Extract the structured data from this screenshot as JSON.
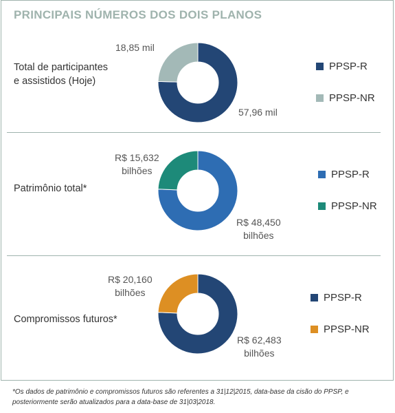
{
  "title": "PRINCIPAIS NÚMEROS DOS DOIS PLANOS",
  "chart_data": [
    {
      "type": "pie",
      "title": "Total de participantes e assistidos (Hoje)",
      "title_lines": [
        "Total de participantes",
        "e assistidos (Hoje)"
      ],
      "categories": [
        "PPSP-R",
        "PPSP-NR"
      ],
      "values": [
        57.96,
        18.85
      ],
      "value_labels": [
        [
          "57,96 mil"
        ],
        [
          "18,85 mil"
        ]
      ],
      "colors": [
        "#234675",
        "#a3b9b7"
      ],
      "legend": "right"
    },
    {
      "type": "pie",
      "title": "Patrimônio total*",
      "title_lines": [
        "Patrimônio total*"
      ],
      "categories": [
        "PPSP-R",
        "PPSP-NR"
      ],
      "values": [
        48.45,
        15.632
      ],
      "value_labels": [
        [
          "R$ 48,450",
          "bilhões"
        ],
        [
          "R$ 15,632",
          "bilhões"
        ]
      ],
      "colors": [
        "#2e6db3",
        "#1d8a79"
      ],
      "legend": "right"
    },
    {
      "type": "pie",
      "title": "Compromissos futuros*",
      "title_lines": [
        "Compromissos futuros*"
      ],
      "categories": [
        "PPSP-R",
        "PPSP-NR"
      ],
      "values": [
        62.483,
        20.16
      ],
      "value_labels": [
        [
          "R$ 62,483",
          "bilhões"
        ],
        [
          "R$ 20,160",
          "bilhões"
        ]
      ],
      "colors": [
        "#234675",
        "#dd8f23"
      ],
      "legend": "right"
    }
  ],
  "footnote_lines": [
    "*Os dados de patrimônio e compromissos futuros são referentes a 31|12|2015, data-base da cisão do PPSP, e",
    "posteriormente serão atualizados para a data-base de 31|03|2018."
  ]
}
